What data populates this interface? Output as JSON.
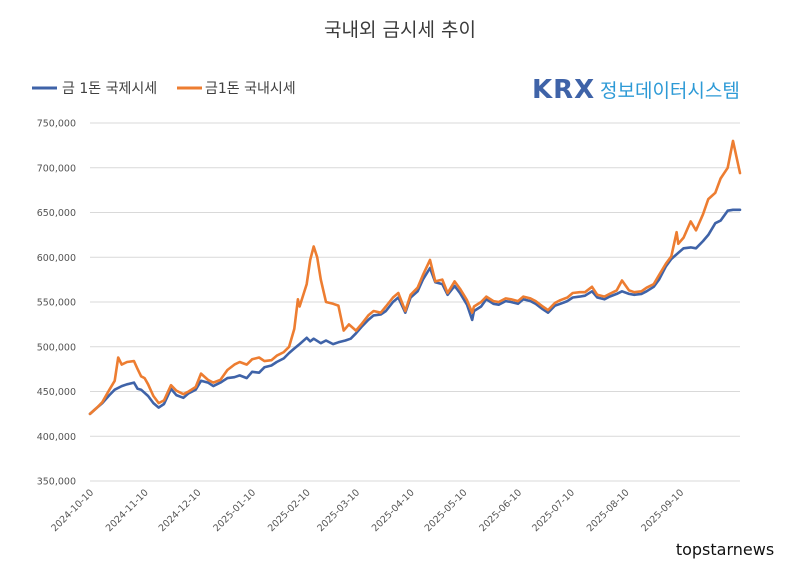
{
  "chart_data": {
    "type": "line",
    "title": "국내외 금시세 추이",
    "xlabel": "",
    "ylabel": "",
    "ylim": [
      350000,
      750000
    ],
    "yticks": [
      "750,000",
      "700,000",
      "650,000",
      "600,000",
      "550,000",
      "500,000",
      "450,000",
      "400,000",
      "350,000"
    ],
    "ytick_values": [
      750000,
      700000,
      650000,
      600000,
      550000,
      500000,
      450000,
      400000,
      350000
    ],
    "xticks": [
      "2024-10-10",
      "2024-11-10",
      "2024-12-10",
      "2025-01-10",
      "2025-02-10",
      "2025-03-10",
      "2025-04-10",
      "2025-05-10",
      "2025-06-10",
      "2025-07-10",
      "2025-08-10",
      "2025-09-10"
    ],
    "xlim": [
      "2024-10-10",
      "2025-10-14"
    ],
    "grid": "horizontal",
    "legend_position": "top-left",
    "series": [
      {
        "name": "금 1돈 국제시세",
        "color": "#3f63a8",
        "points": [
          [
            "2024-10-10",
            425000
          ],
          [
            "2024-10-14",
            432000
          ],
          [
            "2024-10-17",
            437000
          ],
          [
            "2024-10-21",
            446000
          ],
          [
            "2024-10-24",
            452000
          ],
          [
            "2024-10-28",
            456000
          ],
          [
            "2024-10-31",
            458000
          ],
          [
            "2024-11-04",
            460000
          ],
          [
            "2024-11-06",
            453000
          ],
          [
            "2024-11-08",
            452000
          ],
          [
            "2024-11-12",
            445000
          ],
          [
            "2024-11-15",
            437000
          ],
          [
            "2024-11-18",
            432000
          ],
          [
            "2024-11-21",
            436000
          ],
          [
            "2024-11-25",
            453000
          ],
          [
            "2024-11-28",
            446000
          ],
          [
            "2024-12-02",
            443000
          ],
          [
            "2024-12-05",
            448000
          ],
          [
            "2024-12-09",
            452000
          ],
          [
            "2024-12-12",
            462000
          ],
          [
            "2024-12-16",
            460000
          ],
          [
            "2024-12-19",
            456000
          ],
          [
            "2024-12-23",
            460000
          ],
          [
            "2024-12-27",
            465000
          ],
          [
            "2024-12-31",
            466000
          ],
          [
            "2025-01-03",
            468000
          ],
          [
            "2025-01-07",
            465000
          ],
          [
            "2025-01-10",
            472000
          ],
          [
            "2025-01-14",
            471000
          ],
          [
            "2025-01-17",
            477000
          ],
          [
            "2025-01-21",
            479000
          ],
          [
            "2025-01-24",
            483000
          ],
          [
            "2025-01-28",
            487000
          ],
          [
            "2025-01-31",
            493000
          ],
          [
            "2025-02-03",
            498000
          ],
          [
            "2025-02-06",
            503000
          ],
          [
            "2025-02-10",
            510000
          ],
          [
            "2025-02-12",
            506000
          ],
          [
            "2025-02-14",
            509000
          ],
          [
            "2025-02-18",
            504000
          ],
          [
            "2025-02-21",
            507000
          ],
          [
            "2025-02-25",
            503000
          ],
          [
            "2025-02-28",
            505000
          ],
          [
            "2025-03-04",
            507000
          ],
          [
            "2025-03-07",
            509000
          ],
          [
            "2025-03-10",
            515000
          ],
          [
            "2025-03-13",
            522000
          ],
          [
            "2025-03-17",
            530000
          ],
          [
            "2025-03-20",
            535000
          ],
          [
            "2025-03-24",
            536000
          ],
          [
            "2025-03-27",
            540000
          ],
          [
            "2025-03-31",
            550000
          ],
          [
            "2025-04-03",
            555000
          ],
          [
            "2025-04-07",
            538000
          ],
          [
            "2025-04-10",
            555000
          ],
          [
            "2025-04-14",
            562000
          ],
          [
            "2025-04-17",
            575000
          ],
          [
            "2025-04-21",
            588000
          ],
          [
            "2025-04-24",
            572000
          ],
          [
            "2025-04-28",
            570000
          ],
          [
            "2025-05-01",
            558000
          ],
          [
            "2025-05-05",
            568000
          ],
          [
            "2025-05-08",
            560000
          ],
          [
            "2025-05-12",
            547000
          ],
          [
            "2025-05-15",
            530000
          ],
          [
            "2025-05-16",
            540000
          ],
          [
            "2025-05-20",
            545000
          ],
          [
            "2025-05-23",
            553000
          ],
          [
            "2025-05-27",
            548000
          ],
          [
            "2025-05-30",
            547000
          ],
          [
            "2025-06-03",
            551000
          ],
          [
            "2025-06-06",
            550000
          ],
          [
            "2025-06-10",
            548000
          ],
          [
            "2025-06-13",
            553000
          ],
          [
            "2025-06-17",
            551000
          ],
          [
            "2025-06-20",
            548000
          ],
          [
            "2025-06-24",
            542000
          ],
          [
            "2025-06-27",
            538000
          ],
          [
            "2025-07-01",
            546000
          ],
          [
            "2025-07-04",
            548000
          ],
          [
            "2025-07-08",
            551000
          ],
          [
            "2025-07-11",
            555000
          ],
          [
            "2025-07-15",
            556000
          ],
          [
            "2025-07-18",
            557000
          ],
          [
            "2025-07-22",
            562000
          ],
          [
            "2025-07-25",
            555000
          ],
          [
            "2025-07-29",
            553000
          ],
          [
            "2025-08-01",
            556000
          ],
          [
            "2025-08-05",
            559000
          ],
          [
            "2025-08-08",
            562000
          ],
          [
            "2025-08-12",
            559000
          ],
          [
            "2025-08-15",
            558000
          ],
          [
            "2025-08-19",
            559000
          ],
          [
            "2025-08-22",
            562000
          ],
          [
            "2025-08-26",
            567000
          ],
          [
            "2025-08-29",
            575000
          ],
          [
            "2025-09-02",
            590000
          ],
          [
            "2025-09-05",
            598000
          ],
          [
            "2025-09-09",
            605000
          ],
          [
            "2025-09-12",
            610000
          ],
          [
            "2025-09-16",
            611000
          ],
          [
            "2025-09-19",
            610000
          ],
          [
            "2025-09-23",
            618000
          ],
          [
            "2025-09-26",
            625000
          ],
          [
            "2025-09-30",
            638000
          ],
          [
            "2025-10-03",
            641000
          ],
          [
            "2025-10-07",
            652000
          ],
          [
            "2025-10-10",
            653000
          ],
          [
            "2025-10-14",
            653000
          ]
        ]
      },
      {
        "name": "금1돈 국내시세",
        "color": "#ed7d31",
        "points": [
          [
            "2024-10-10",
            425000
          ],
          [
            "2024-10-14",
            432000
          ],
          [
            "2024-10-17",
            438000
          ],
          [
            "2024-10-21",
            452000
          ],
          [
            "2024-10-24",
            462000
          ],
          [
            "2024-10-26",
            488000
          ],
          [
            "2024-10-28",
            480000
          ],
          [
            "2024-10-31",
            483000
          ],
          [
            "2024-11-04",
            484000
          ],
          [
            "2024-11-06",
            475000
          ],
          [
            "2024-11-08",
            467000
          ],
          [
            "2024-11-10",
            465000
          ],
          [
            "2024-11-12",
            458000
          ],
          [
            "2024-11-15",
            445000
          ],
          [
            "2024-11-18",
            437000
          ],
          [
            "2024-11-21",
            440000
          ],
          [
            "2024-11-25",
            457000
          ],
          [
            "2024-11-28",
            451000
          ],
          [
            "2024-12-02",
            447000
          ],
          [
            "2024-12-05",
            450000
          ],
          [
            "2024-12-09",
            455000
          ],
          [
            "2024-12-12",
            470000
          ],
          [
            "2024-12-16",
            463000
          ],
          [
            "2024-12-19",
            460000
          ],
          [
            "2024-12-23",
            463000
          ],
          [
            "2024-12-27",
            474000
          ],
          [
            "2024-12-31",
            480000
          ],
          [
            "2025-01-03",
            483000
          ],
          [
            "2025-01-07",
            480000
          ],
          [
            "2025-01-10",
            486000
          ],
          [
            "2025-01-14",
            488000
          ],
          [
            "2025-01-17",
            484000
          ],
          [
            "2025-01-21",
            485000
          ],
          [
            "2025-01-24",
            490000
          ],
          [
            "2025-01-28",
            494000
          ],
          [
            "2025-01-31",
            500000
          ],
          [
            "2025-02-03",
            520000
          ],
          [
            "2025-02-05",
            553000
          ],
          [
            "2025-02-06",
            545000
          ],
          [
            "2025-02-10",
            570000
          ],
          [
            "2025-02-12",
            597000
          ],
          [
            "2025-02-14",
            612000
          ],
          [
            "2025-02-16",
            600000
          ],
          [
            "2025-02-18",
            575000
          ],
          [
            "2025-02-21",
            550000
          ],
          [
            "2025-02-25",
            548000
          ],
          [
            "2025-02-28",
            546000
          ],
          [
            "2025-03-03",
            518000
          ],
          [
            "2025-03-06",
            525000
          ],
          [
            "2025-03-10",
            518000
          ],
          [
            "2025-03-13",
            525000
          ],
          [
            "2025-03-17",
            535000
          ],
          [
            "2025-03-20",
            540000
          ],
          [
            "2025-03-24",
            538000
          ],
          [
            "2025-03-27",
            545000
          ],
          [
            "2025-03-31",
            555000
          ],
          [
            "2025-04-03",
            560000
          ],
          [
            "2025-04-07",
            540000
          ],
          [
            "2025-04-10",
            558000
          ],
          [
            "2025-04-14",
            566000
          ],
          [
            "2025-04-17",
            580000
          ],
          [
            "2025-04-21",
            597000
          ],
          [
            "2025-04-24",
            573000
          ],
          [
            "2025-04-28",
            575000
          ],
          [
            "2025-05-01",
            560000
          ],
          [
            "2025-05-05",
            573000
          ],
          [
            "2025-05-08",
            565000
          ],
          [
            "2025-05-12",
            552000
          ],
          [
            "2025-05-15",
            538000
          ],
          [
            "2025-05-16",
            545000
          ],
          [
            "2025-05-20",
            550000
          ],
          [
            "2025-05-23",
            556000
          ],
          [
            "2025-05-27",
            551000
          ],
          [
            "2025-05-30",
            550000
          ],
          [
            "2025-06-03",
            554000
          ],
          [
            "2025-06-06",
            553000
          ],
          [
            "2025-06-10",
            551000
          ],
          [
            "2025-06-13",
            556000
          ],
          [
            "2025-06-17",
            554000
          ],
          [
            "2025-06-20",
            551000
          ],
          [
            "2025-06-24",
            545000
          ],
          [
            "2025-06-27",
            541000
          ],
          [
            "2025-07-01",
            549000
          ],
          [
            "2025-07-04",
            552000
          ],
          [
            "2025-07-08",
            555000
          ],
          [
            "2025-07-11",
            560000
          ],
          [
            "2025-07-15",
            561000
          ],
          [
            "2025-07-18",
            561000
          ],
          [
            "2025-07-22",
            567000
          ],
          [
            "2025-07-25",
            558000
          ],
          [
            "2025-07-29",
            556000
          ],
          [
            "2025-08-01",
            559000
          ],
          [
            "2025-08-05",
            563000
          ],
          [
            "2025-08-08",
            574000
          ],
          [
            "2025-08-12",
            563000
          ],
          [
            "2025-08-15",
            561000
          ],
          [
            "2025-08-19",
            562000
          ],
          [
            "2025-08-22",
            566000
          ],
          [
            "2025-08-26",
            570000
          ],
          [
            "2025-08-29",
            580000
          ],
          [
            "2025-09-02",
            593000
          ],
          [
            "2025-09-05",
            601000
          ],
          [
            "2025-09-08",
            628000
          ],
          [
            "2025-09-09",
            615000
          ],
          [
            "2025-09-12",
            622000
          ],
          [
            "2025-09-16",
            640000
          ],
          [
            "2025-09-19",
            630000
          ],
          [
            "2025-09-23",
            648000
          ],
          [
            "2025-09-26",
            665000
          ],
          [
            "2025-09-30",
            672000
          ],
          [
            "2025-10-03",
            688000
          ],
          [
            "2025-10-07",
            700000
          ],
          [
            "2025-10-10",
            730000
          ],
          [
            "2025-10-14",
            694000
          ]
        ]
      }
    ]
  },
  "branding": {
    "krx_logo": "KRX",
    "krx_subtitle": "정보데이터시스템",
    "watermark": "topstarnews"
  }
}
